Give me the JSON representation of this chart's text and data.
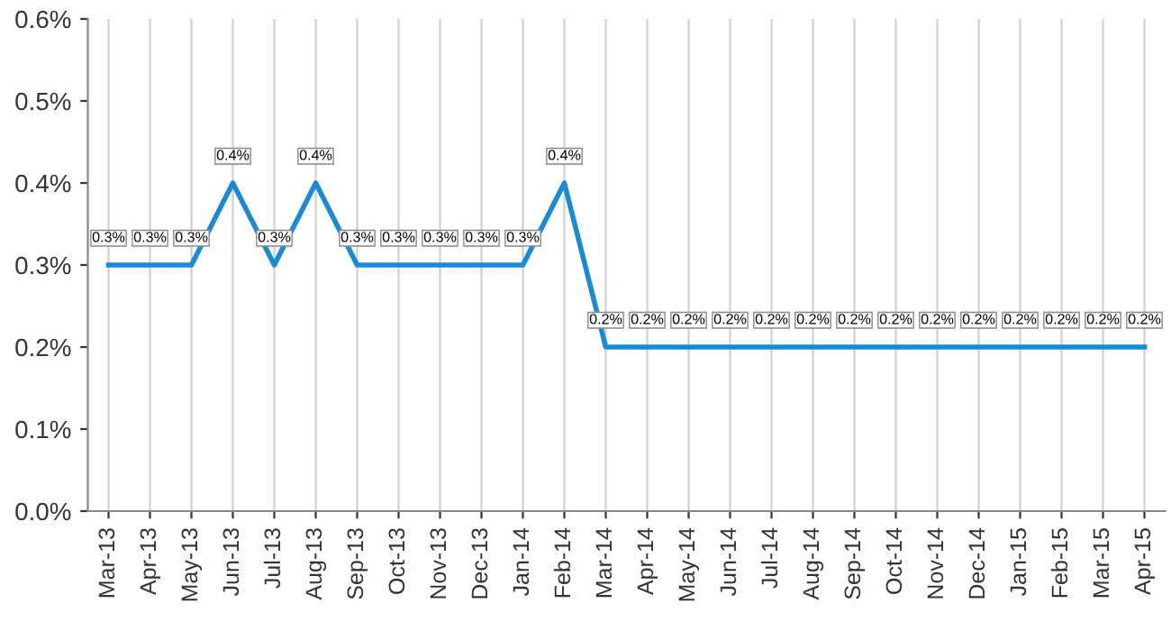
{
  "chart_data": {
    "type": "line",
    "categories": [
      "Mar-13",
      "Apr-13",
      "May-13",
      "Jun-13",
      "Jul-13",
      "Aug-13",
      "Sep-13",
      "Oct-13",
      "Nov-13",
      "Dec-13",
      "Jan-14",
      "Feb-14",
      "Mar-14",
      "Apr-14",
      "May-14",
      "Jun-14",
      "Jul-14",
      "Aug-14",
      "Sep-14",
      "Oct-14",
      "Nov-14",
      "Dec-14",
      "Jan-15",
      "Feb-15",
      "Mar-15",
      "Apr-15"
    ],
    "series": [
      {
        "color": "#1a8ad4",
        "values": [
          0.3,
          0.3,
          0.3,
          0.4,
          0.3,
          0.4,
          0.3,
          0.3,
          0.3,
          0.3,
          0.3,
          0.4,
          0.2,
          0.2,
          0.2,
          0.2,
          0.2,
          0.2,
          0.2,
          0.2,
          0.2,
          0.2,
          0.2,
          0.2,
          0.2,
          0.2
        ],
        "value_labels": [
          "0.3%",
          "0.3%",
          "0.3%",
          "0.4%",
          "0.3%",
          "0.4%",
          "0.3%",
          "0.3%",
          "0.3%",
          "0.3%",
          "0.3%",
          "0.4%",
          "0.2%",
          "0.2%",
          "0.2%",
          "0.2%",
          "0.2%",
          "0.2%",
          "0.2%",
          "0.2%",
          "0.2%",
          "0.2%",
          "0.2%",
          "0.2%",
          "0.2%",
          "0.2%"
        ]
      }
    ],
    "ylim": [
      0,
      0.6
    ],
    "yticks": [
      {
        "value": 0,
        "label": "0.0%"
      },
      {
        "value": 0.1,
        "label": "0.1%"
      },
      {
        "value": 0.2,
        "label": "0.2%"
      },
      {
        "value": 0.3,
        "label": "0.3%"
      },
      {
        "value": 0.4,
        "label": "0.4%"
      },
      {
        "value": 0.5,
        "label": "0.5%"
      },
      {
        "value": 0.6,
        "label": "0.6%"
      }
    ],
    "grid": "x",
    "marker": "none",
    "line_style": "solid"
  }
}
